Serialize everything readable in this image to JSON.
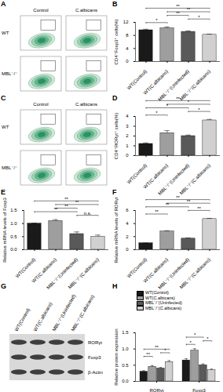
{
  "chart_data": [
    {
      "panel": "B",
      "type": "bar",
      "y_label": "CD4⁺Foxp3⁺ cells(%)",
      "categories": [
        "WT(Control)",
        "WT(C.albicans)",
        "MBL⁻/⁻(Uninfected)",
        "MBL⁻/⁻(C.albicans)"
      ],
      "values": [
        9.6,
        10.2,
        9.1,
        8.2
      ],
      "errors": [
        0.3,
        0.4,
        0.3,
        0.2
      ],
      "colors": [
        "#1a1a1a",
        "#9e9e9e",
        "#595959",
        "#d0d0d0"
      ],
      "ylim": [
        0,
        12
      ],
      "yticks": [
        0,
        4,
        8,
        12
      ],
      "annotations": [
        {
          "between": [
            "WT(Control)",
            "WT(C.albicans)"
          ],
          "text": "*"
        },
        {
          "between": [
            "MBL⁻/⁻(Uninfected)",
            "MBL⁻/⁻(C.albicans)"
          ],
          "text": "*"
        },
        {
          "between": [
            "WT(C.albicans)",
            "MBL⁻/⁻(Uninfected)"
          ],
          "text": "**"
        },
        {
          "between": [
            "WT(C.albicans)",
            "MBL⁻/⁻(C.albicans)"
          ],
          "text": "**"
        },
        {
          "between": [
            "WT(Control)",
            "MBL⁻/⁻(C.albicans)"
          ],
          "text": "**"
        }
      ]
    },
    {
      "panel": "D",
      "type": "bar",
      "y_label": "CD4⁺RORγt⁺ cells(%)",
      "categories": [
        "WT(Control)",
        "WT(C.albicans)",
        "MBL⁻/⁻(Uninfected)",
        "MBL⁻/⁻(C.albicans)"
      ],
      "values": [
        1.2,
        2.3,
        2.0,
        3.6
      ],
      "errors": [
        0.1,
        0.25,
        0.1,
        0.1
      ],
      "colors": [
        "#1a1a1a",
        "#9e9e9e",
        "#595959",
        "#d0d0d0"
      ],
      "ylim": [
        0,
        4
      ],
      "yticks": [
        0,
        1,
        2,
        3,
        4
      ],
      "annotations": [
        {
          "between": [
            "WT(Control)",
            "WT(C.albicans)"
          ],
          "text": "*"
        },
        {
          "between": [
            "MBL⁻/⁻(Uninfected)",
            "MBL⁻/⁻(C.albicans)"
          ],
          "text": "*"
        },
        {
          "between": [
            "WT(Control)",
            "MBL⁻/⁻(Uninfected)"
          ],
          "text": "*"
        },
        {
          "between": [
            "WT(C.albicans)",
            "MBL⁻/⁻(C.albicans)"
          ],
          "text": "*"
        },
        {
          "between": [
            "WT(Control)",
            "MBL⁻/⁻(C.albicans)"
          ],
          "text": "**"
        }
      ]
    },
    {
      "panel": "E",
      "type": "bar",
      "y_label": "Relative mRNA levels of Foxp3",
      "categories": [
        "WT(Control)",
        "WT(C.albicans)",
        "MBL⁻/⁻(Uninfected)",
        "MBL⁻/⁻(C.albicans)"
      ],
      "values": [
        1.0,
        1.1,
        0.6,
        0.5
      ],
      "errors": [
        0.02,
        0.05,
        0.08,
        0.06
      ],
      "colors": [
        "#1a1a1a",
        "#9e9e9e",
        "#595959",
        "#d0d0d0"
      ],
      "ylim": [
        0,
        1.5
      ],
      "yticks": [
        {
          "value": 0,
          "label": "0.0"
        },
        0.5,
        {
          "value": 1,
          "label": "1.0"
        },
        1.5
      ],
      "annotations": [
        {
          "between": [
            "MBL⁻/⁻(Uninfected)",
            "MBL⁻/⁻(C.albicans)"
          ],
          "text": "n.s."
        },
        {
          "between": [
            "WT(Control)",
            "MBL⁻/⁻(Uninfected)"
          ],
          "text": "**"
        },
        {
          "between": [
            "WT(C.albicans)",
            "MBL⁻/⁻(Uninfected)"
          ],
          "text": "**"
        },
        {
          "between": [
            "WT(C.albicans)",
            "MBL⁻/⁻(C.albicans)"
          ],
          "text": "**"
        },
        {
          "between": [
            "WT(Control)",
            "MBL⁻/⁻(C.albicans)"
          ],
          "text": "**"
        }
      ]
    },
    {
      "panel": "F",
      "type": "bar",
      "y_label": "Relative mRNA levels of RORγt",
      "categories": [
        "WT(Control)",
        "WT(C.albicans)",
        "MBL⁻/⁻(Uninfected)",
        "MBL⁻/⁻(C.albicans)"
      ],
      "values": [
        1.0,
        2.8,
        1.7,
        4.7
      ],
      "errors": [
        0.02,
        0.1,
        0.1,
        0.1
      ],
      "colors": [
        "#1a1a1a",
        "#9e9e9e",
        "#595959",
        "#d0d0d0"
      ],
      "ylim": [
        0,
        6
      ],
      "yticks": [
        0,
        2,
        4,
        6
      ],
      "annotations": [
        {
          "between": [
            "WT(Control)",
            "WT(C.albicans)"
          ],
          "text": "**"
        },
        {
          "between": [
            "MBL⁻/⁻(Uninfected)",
            "MBL⁻/⁻(C.albicans)"
          ],
          "text": "**"
        },
        {
          "between": [
            "WT(Control)",
            "MBL⁻/⁻(Uninfected)"
          ],
          "text": "**"
        },
        {
          "between": [
            "WT(C.albicans)",
            "MBL⁻/⁻(C.albicans)"
          ],
          "text": "**"
        },
        {
          "between": [
            "WT(Control)",
            "MBL⁻/⁻(C.albicans)"
          ],
          "text": "**"
        }
      ]
    },
    {
      "panel": "H",
      "type": "bar",
      "y_label": "Relative protein expression",
      "categories": [
        "RORγt",
        "Foxp3"
      ],
      "series": [
        {
          "name": "WT(Control)",
          "color": "#1a1a1a",
          "values": [
            0.3,
            0.65
          ],
          "errors": [
            0.03,
            0.05
          ]
        },
        {
          "name": "WT(C.albicans)",
          "color": "#9e9e9e",
          "values": [
            0.45,
            0.95
          ],
          "errors": [
            0.04,
            0.06
          ]
        },
        {
          "name": "MBL⁻/⁻(Uninfected)",
          "color": "#595959",
          "values": [
            0.4,
            0.5
          ],
          "errors": [
            0.03,
            0.04
          ]
        },
        {
          "name": "MBL⁻/⁻(C.albicans)",
          "color": "#d0d0d0",
          "values": [
            0.6,
            0.35
          ],
          "errors": [
            0.04,
            0.03
          ]
        }
      ],
      "ylim": [
        0,
        1.5
      ],
      "yticks": [
        {
          "value": 0,
          "label": "0.0"
        },
        0.5,
        {
          "value": 1,
          "label": "1.0"
        },
        1.5
      ],
      "legend": "top-left",
      "annotations": [
        {
          "category": "RORγt",
          "between": [
            "WT(Control)",
            "WT(C.albicans)"
          ],
          "text": "**"
        },
        {
          "category": "RORγt",
          "between": [
            "MBL⁻/⁻(Uninfected)",
            "MBL⁻/⁻(C.albicans)"
          ],
          "text": "*"
        },
        {
          "category": "RORγt",
          "between": [
            "WT(Control)",
            "MBL⁻/⁻(C.albicans)"
          ],
          "text": "**"
        },
        {
          "category": "Foxp3",
          "between": [
            "WT(Control)",
            "WT(C.albicans)"
          ],
          "text": "*"
        },
        {
          "category": "Foxp3",
          "between": [
            "MBL⁻/⁻(Uninfected)",
            "MBL⁻/⁻(C.albicans)"
          ],
          "text": "*"
        },
        {
          "category": "Foxp3",
          "between": [
            "WT(Control)",
            "MBL⁻/⁻(Uninfected)"
          ],
          "text": "*"
        }
      ]
    }
  ],
  "flow_cytometry": [
    {
      "panel": "A",
      "columns": [
        "Control",
        "C.albicans"
      ],
      "rows": [
        "WT",
        "MBL⁻/⁻"
      ]
    },
    {
      "panel": "C",
      "columns": [
        "Control",
        "C.albicans"
      ],
      "rows": [
        "WT",
        "MBL⁻/⁻"
      ]
    }
  ],
  "western_blot": {
    "panel": "G",
    "lanes": [
      "WT(Control)",
      "WT(C.albicans)",
      "MBL⁻/⁻(Uninfected)",
      "MBL⁻/⁻(C.albicans)"
    ],
    "proteins": [
      "RORγt",
      "Foxp3",
      "β-Actin"
    ]
  }
}
